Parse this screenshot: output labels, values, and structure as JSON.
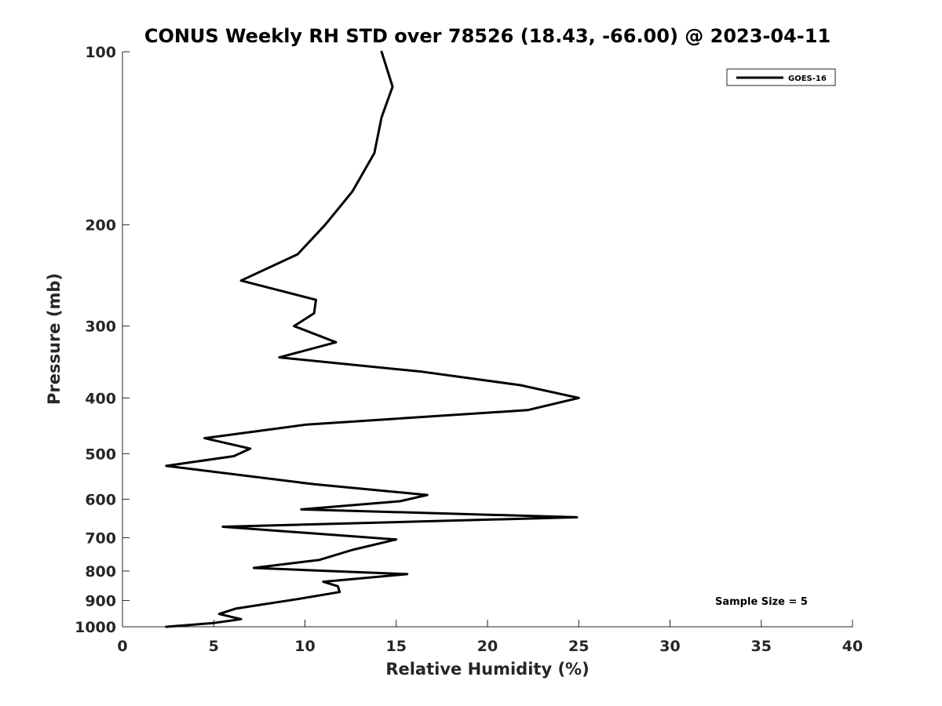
{
  "chart_data": {
    "type": "line",
    "title": "CONUS Weekly RH STD over 78526 (18.43, -66.00) @ 2023-04-11",
    "xlabel": "Relative Humidity (%)",
    "ylabel": "Pressure (mb)",
    "xlim": [
      0,
      40
    ],
    "ylim": [
      100,
      1000
    ],
    "yscale": "log",
    "y_reversed": true,
    "x_ticks": [
      0,
      5,
      10,
      15,
      20,
      25,
      30,
      35,
      40
    ],
    "x_tick_labels": [
      "0",
      "5",
      "10",
      "15",
      "20",
      "25",
      "30",
      "35",
      "40"
    ],
    "y_ticks": [
      100,
      200,
      300,
      400,
      500,
      600,
      700,
      800,
      900,
      1000
    ],
    "y_tick_labels": [
      "100",
      "200",
      "300",
      "400",
      "500",
      "600",
      "700",
      "800",
      "900",
      "1000"
    ],
    "grid": false,
    "legend_position": "top-right",
    "series": [
      {
        "name": "GOES-16",
        "color": "#000000",
        "x": [
          14.2,
          14.8,
          14.2,
          13.8,
          12.6,
          11.1,
          9.6,
          6.5,
          10.6,
          10.5,
          9.4,
          11.7,
          8.6,
          16.4,
          21.8,
          25.0,
          22.2,
          10.1,
          4.5,
          7.0,
          6.1,
          2.4,
          10.5,
          16.7,
          15.2,
          9.8,
          24.9,
          5.5,
          15.0,
          12.6,
          10.8,
          7.2,
          15.6,
          11.0,
          11.8,
          11.9,
          9.6,
          6.2,
          5.3,
          6.5,
          5.0,
          2.4
        ],
        "y": [
          100,
          115,
          130,
          150,
          175,
          200,
          225,
          250,
          270,
          285,
          300,
          320,
          340,
          360,
          380,
          400,
          420,
          445,
          470,
          490,
          505,
          525,
          565,
          590,
          605,
          625,
          645,
          670,
          705,
          735,
          765,
          790,
          810,
          835,
          850,
          870,
          895,
          930,
          950,
          970,
          985,
          1000
        ]
      }
    ],
    "annotations": [
      {
        "text": "Sample Size = 5",
        "position": "bottom-right"
      }
    ]
  }
}
